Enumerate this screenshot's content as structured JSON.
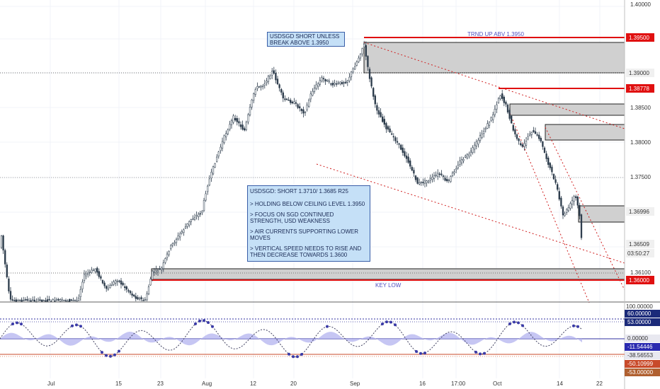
{
  "symbol": "USDSGD",
  "price_axis": {
    "ticks": [
      "1.40000",
      "1.38500",
      "1.38000",
      "1.37500",
      "1.36509",
      "1.36100"
    ],
    "badges": [
      {
        "value": "1.39500",
        "color": "#e01010"
      },
      {
        "value": "1.39000",
        "color": "#f0f0f0"
      },
      {
        "value": "1.38778",
        "color": "#e01010"
      },
      {
        "value": "1.36996",
        "color": "#f0f0f0"
      },
      {
        "value": "1.36000",
        "color": "#e01010"
      }
    ],
    "countdown": "03:50:27"
  },
  "time_axis": {
    "labels": [
      "Jul",
      "15",
      "23",
      "Aug",
      "12",
      "20",
      "Sep",
      "16",
      "17:00",
      "Oct",
      "14",
      "22"
    ]
  },
  "annotations": {
    "short_note": "USDSGD SHORT UNLESS BREAK ABOVE 1.3950",
    "trend_label": "TRND UP ABV 1.3950",
    "key_low": "KEY LOW",
    "main_note": [
      "USDSGD: SHORT 1.3710/ 1.3685 R25",
      "> HOLDING BELOW CEILING LEVEL 1.3950",
      "> FOCUS ON SGD CONTINUED STRENGTH, USD WEAKNESS",
      "> AIR CURRENTS SUPPORTING LOWER MOVES",
      "> VERTICAL SPEED NEEDS TO RISE AND THEN DECREASE TOWARDS 1.3600"
    ]
  },
  "oscillator": {
    "axis_value": "100.00000",
    "badges": [
      {
        "value": "60.00000",
        "color": "#1b2a7a"
      },
      {
        "value": "53.00000",
        "color": "#1b2a7a"
      },
      {
        "value": "0.00000",
        "color": "#e8e8f0"
      },
      {
        "value": "-11.54446",
        "color": "#2a2ab0"
      },
      {
        "value": "-38.56553",
        "color": "#e8e8f0"
      },
      {
        "value": "-50.10999",
        "color": "#c84a2a"
      },
      {
        "value": "-53.00000",
        "color": "#b06030"
      }
    ]
  },
  "colors": {
    "candle": "#2b3a4a",
    "support": "#e01010",
    "trend": "#d02020",
    "zone": "#d0d0d0",
    "osc_fill": "#b8b8f0",
    "osc_dots": "#3a3aa8"
  }
}
